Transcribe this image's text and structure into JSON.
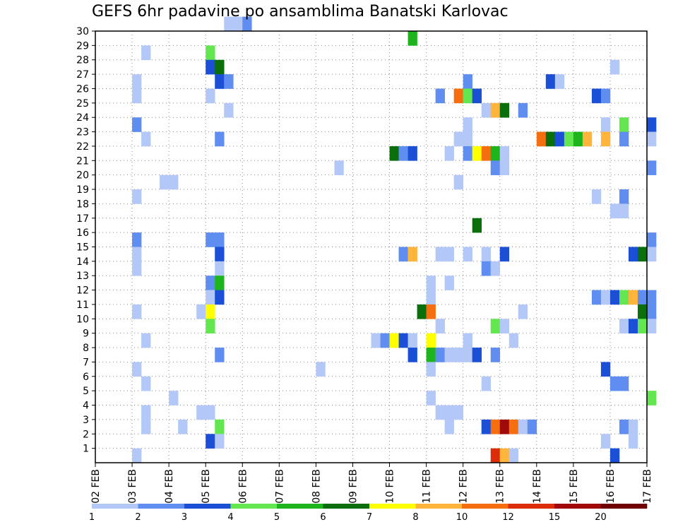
{
  "chart_data": {
    "type": "heatmap",
    "title": "GEFS 6hr padavine po ansamblima Banatski Karlovac",
    "x_tick_labels": [
      "02 FEB",
      "03 FEB",
      "04 FEB",
      "05 FEB",
      "06 FEB",
      "07 FEB",
      "08 FEB",
      "09 FEB",
      "10 FEB",
      "11 FEB",
      "12 FEB",
      "13 FEB",
      "14 FEB",
      "15 FEB",
      "16 FEB",
      "17 FEB"
    ],
    "y_tick_labels": [
      "1",
      "2",
      "3",
      "4",
      "5",
      "6",
      "7",
      "8",
      "9",
      "10",
      "11",
      "12",
      "13",
      "14",
      "15",
      "16",
      "17",
      "18",
      "19",
      "20",
      "21",
      "22",
      "23",
      "24",
      "25",
      "26",
      "27",
      "28",
      "29",
      "30"
    ],
    "x_unit": "days since 02 FEB",
    "xlim": [
      0,
      15
    ],
    "ylim": [
      0,
      30
    ],
    "steps_per_day": 4,
    "grid": true,
    "colorbar": {
      "position": "bottom",
      "labels": [
        "1",
        "2",
        "3",
        "4",
        "5",
        "6",
        "7",
        "8",
        "10",
        "12",
        "15",
        "20"
      ],
      "colors": [
        "#b4c8f8",
        "#5f8ef0",
        "#1a4fd6",
        "#64e650",
        "#1eb41e",
        "#0a6e0a",
        "#ffff00",
        "#ffb43c",
        "#f56e0f",
        "#dc2d0a",
        "#a00a0a",
        "#6e0000"
      ]
    },
    "cells": [
      [
        3.5,
        30,
        0
      ],
      [
        3.75,
        30,
        0
      ],
      [
        4.0,
        30,
        1
      ],
      [
        8.5,
        29,
        4
      ],
      [
        1.25,
        28,
        0
      ],
      [
        3.0,
        28,
        3
      ],
      [
        3.0,
        27,
        2
      ],
      [
        3.25,
        27,
        5
      ],
      [
        14.0,
        27,
        0
      ],
      [
        1.0,
        26,
        0
      ],
      [
        3.25,
        26,
        2
      ],
      [
        3.5,
        26,
        1
      ],
      [
        10.0,
        26,
        1
      ],
      [
        12.25,
        26,
        2
      ],
      [
        12.5,
        26,
        0
      ],
      [
        1.0,
        25,
        0
      ],
      [
        3.0,
        25,
        0
      ],
      [
        9.25,
        25,
        1
      ],
      [
        9.75,
        25,
        8
      ],
      [
        10.0,
        25,
        3
      ],
      [
        10.25,
        25,
        2
      ],
      [
        13.5,
        25,
        2
      ],
      [
        13.75,
        25,
        1
      ],
      [
        3.5,
        24,
        0
      ],
      [
        10.5,
        24,
        0
      ],
      [
        10.75,
        24,
        7
      ],
      [
        11.0,
        24,
        5
      ],
      [
        11.5,
        24,
        1
      ],
      [
        1.0,
        23,
        1
      ],
      [
        10.0,
        23,
        0
      ],
      [
        13.75,
        23,
        0
      ],
      [
        14.25,
        23,
        3
      ],
      [
        15.0,
        23,
        2
      ],
      [
        1.25,
        22,
        0
      ],
      [
        3.25,
        22,
        1
      ],
      [
        9.75,
        22,
        0
      ],
      [
        10.0,
        22,
        0
      ],
      [
        12.0,
        22,
        8
      ],
      [
        12.25,
        22,
        5
      ],
      [
        12.5,
        22,
        2
      ],
      [
        12.75,
        22,
        3
      ],
      [
        13.0,
        22,
        4
      ],
      [
        13.25,
        22,
        7
      ],
      [
        13.75,
        22,
        7
      ],
      [
        14.25,
        22,
        1
      ],
      [
        15.0,
        22,
        0
      ],
      [
        8.0,
        21,
        5
      ],
      [
        8.25,
        21,
        1
      ],
      [
        8.5,
        21,
        2
      ],
      [
        9.5,
        21,
        0
      ],
      [
        10.0,
        21,
        1
      ],
      [
        10.25,
        21,
        6
      ],
      [
        10.5,
        21,
        8
      ],
      [
        10.75,
        21,
        4
      ],
      [
        11.0,
        21,
        0
      ],
      [
        6.5,
        20,
        0
      ],
      [
        10.75,
        20,
        1
      ],
      [
        11.0,
        20,
        0
      ],
      [
        15.0,
        20,
        1
      ],
      [
        1.75,
        19,
        0
      ],
      [
        2.0,
        19,
        0
      ],
      [
        9.75,
        19,
        0
      ],
      [
        1.0,
        18,
        0
      ],
      [
        13.5,
        18,
        0
      ],
      [
        14.25,
        18,
        1
      ],
      [
        14.0,
        17,
        0
      ],
      [
        14.25,
        17,
        0
      ],
      [
        10.25,
        16,
        5
      ],
      [
        1.0,
        15,
        1
      ],
      [
        3.0,
        15,
        1
      ],
      [
        3.25,
        15,
        1
      ],
      [
        15.0,
        15,
        1
      ],
      [
        1.0,
        14,
        0
      ],
      [
        3.25,
        14,
        2
      ],
      [
        8.25,
        14,
        1
      ],
      [
        8.5,
        14,
        7
      ],
      [
        9.25,
        14,
        0
      ],
      [
        9.5,
        14,
        0
      ],
      [
        10.0,
        14,
        0
      ],
      [
        10.5,
        14,
        0
      ],
      [
        11.0,
        14,
        2
      ],
      [
        14.5,
        14,
        2
      ],
      [
        14.75,
        14,
        5
      ],
      [
        15.0,
        14,
        0
      ],
      [
        1.0,
        13,
        0
      ],
      [
        3.25,
        13,
        0
      ],
      [
        10.5,
        13,
        1
      ],
      [
        10.75,
        13,
        0
      ],
      [
        3.0,
        12,
        1
      ],
      [
        3.25,
        12,
        4
      ],
      [
        9.0,
        12,
        0
      ],
      [
        9.5,
        12,
        0
      ],
      [
        3.0,
        11,
        0
      ],
      [
        3.25,
        11,
        2
      ],
      [
        9.0,
        11,
        0
      ],
      [
        13.5,
        11,
        1
      ],
      [
        13.75,
        11,
        0
      ],
      [
        14.0,
        11,
        2
      ],
      [
        14.25,
        11,
        3
      ],
      [
        14.5,
        11,
        7
      ],
      [
        14.75,
        11,
        1
      ],
      [
        15.0,
        11,
        1
      ],
      [
        1.0,
        10,
        0
      ],
      [
        2.75,
        10,
        0
      ],
      [
        3.0,
        10,
        6
      ],
      [
        8.75,
        10,
        5
      ],
      [
        9.0,
        10,
        8
      ],
      [
        11.5,
        10,
        0
      ],
      [
        14.75,
        10,
        5
      ],
      [
        15.0,
        10,
        1
      ],
      [
        3.0,
        9,
        3
      ],
      [
        9.25,
        9,
        0
      ],
      [
        10.75,
        9,
        3
      ],
      [
        11.0,
        9,
        0
      ],
      [
        14.25,
        9,
        0
      ],
      [
        14.5,
        9,
        2
      ],
      [
        14.75,
        9,
        3
      ],
      [
        15.0,
        9,
        0
      ],
      [
        1.25,
        8,
        0
      ],
      [
        7.5,
        8,
        0
      ],
      [
        7.75,
        8,
        1
      ],
      [
        8.0,
        8,
        6
      ],
      [
        8.25,
        8,
        2
      ],
      [
        8.5,
        8,
        0
      ],
      [
        9.0,
        8,
        6
      ],
      [
        10.0,
        8,
        0
      ],
      [
        11.25,
        8,
        0
      ],
      [
        3.25,
        7,
        1
      ],
      [
        8.5,
        7,
        2
      ],
      [
        9.0,
        7,
        4
      ],
      [
        9.25,
        7,
        1
      ],
      [
        9.5,
        7,
        0
      ],
      [
        9.75,
        7,
        0
      ],
      [
        10.0,
        7,
        0
      ],
      [
        10.25,
        7,
        2
      ],
      [
        10.75,
        7,
        1
      ],
      [
        1.0,
        6,
        0
      ],
      [
        6.0,
        6,
        0
      ],
      [
        9.0,
        6,
        0
      ],
      [
        13.75,
        6,
        2
      ],
      [
        1.25,
        5,
        0
      ],
      [
        10.5,
        5,
        0
      ],
      [
        14.0,
        5,
        1
      ],
      [
        14.25,
        5,
        1
      ],
      [
        2.0,
        4,
        0
      ],
      [
        9.0,
        4,
        0
      ],
      [
        15.0,
        4,
        3
      ],
      [
        1.25,
        3,
        0
      ],
      [
        2.75,
        3,
        0
      ],
      [
        3.0,
        3,
        0
      ],
      [
        9.25,
        3,
        0
      ],
      [
        9.5,
        3,
        0
      ],
      [
        9.75,
        3,
        0
      ],
      [
        1.25,
        2,
        0
      ],
      [
        2.25,
        2,
        0
      ],
      [
        3.25,
        2,
        3
      ],
      [
        9.5,
        2,
        0
      ],
      [
        10.5,
        2,
        2
      ],
      [
        10.75,
        2,
        8
      ],
      [
        11.0,
        2,
        10
      ],
      [
        11.25,
        2,
        8
      ],
      [
        11.5,
        2,
        0
      ],
      [
        11.75,
        2,
        1
      ],
      [
        14.25,
        2,
        1
      ],
      [
        14.5,
        2,
        0
      ],
      [
        3.0,
        1,
        2
      ],
      [
        3.25,
        1,
        0
      ],
      [
        13.75,
        1,
        0
      ],
      [
        14.5,
        1,
        0
      ],
      [
        1.0,
        0,
        0
      ],
      [
        10.75,
        0,
        9
      ],
      [
        11.0,
        0,
        7
      ],
      [
        11.25,
        0,
        0
      ],
      [
        14.0,
        0,
        2
      ]
    ]
  }
}
